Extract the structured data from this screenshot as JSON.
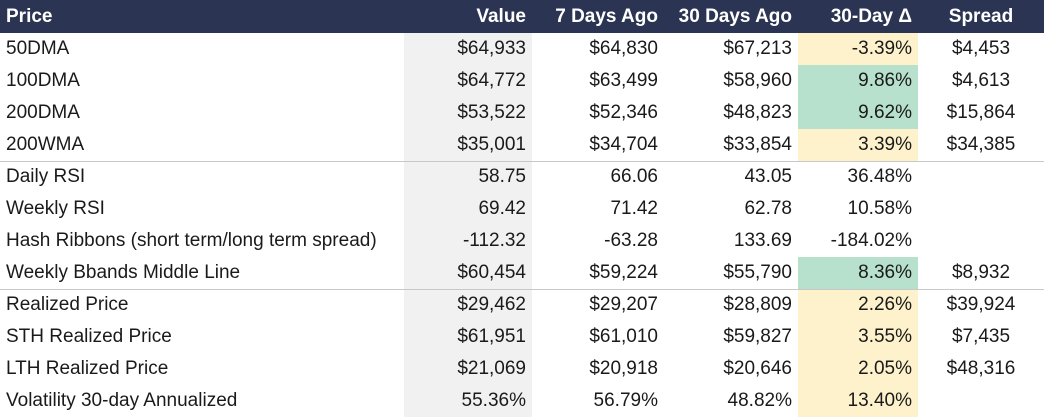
{
  "header": {
    "price": "Price",
    "value": "Value",
    "seven_days_ago": "7 Days Ago",
    "thirty_days_ago": "30 Days Ago",
    "delta_30d": "30-Day Δ",
    "spread": "Spread"
  },
  "colors": {
    "header_bg": "#2b3553",
    "header_text": "#ffffff",
    "value_col_bg": "#f1f1f1",
    "highlight_green": "#b7e1cd",
    "highlight_yellow": "#fdf2cc"
  },
  "rows": [
    {
      "label": "50DMA",
      "value": "$64,933",
      "d7": "$64,830",
      "d30": "$67,213",
      "delta": "-3.39%",
      "spread": "$4,453",
      "delta_highlight": "yellow"
    },
    {
      "label": "100DMA",
      "value": "$64,772",
      "d7": "$63,499",
      "d30": "$58,960",
      "delta": "9.86%",
      "spread": "$4,613",
      "delta_highlight": "green"
    },
    {
      "label": "200DMA",
      "value": "$53,522",
      "d7": "$52,346",
      "d30": "$48,823",
      "delta": "9.62%",
      "spread": "$15,864",
      "delta_highlight": "green"
    },
    {
      "label": "200WMA",
      "value": "$35,001",
      "d7": "$34,704",
      "d30": "$33,854",
      "delta": "3.39%",
      "spread": "$34,385",
      "delta_highlight": "yellow"
    },
    {
      "label": "Daily RSI",
      "value": "58.75",
      "d7": "66.06",
      "d30": "43.05",
      "delta": "36.48%",
      "spread": "",
      "delta_highlight": "none"
    },
    {
      "label": "Weekly RSI",
      "value": "69.42",
      "d7": "71.42",
      "d30": "62.78",
      "delta": "10.58%",
      "spread": "",
      "delta_highlight": "none"
    },
    {
      "label": "Hash Ribbons (short term/long term spread)",
      "value": "-112.32",
      "d7": "-63.28",
      "d30": "133.69",
      "delta": "-184.02%",
      "spread": "",
      "delta_highlight": "none"
    },
    {
      "label": "Weekly Bbands Middle Line",
      "value": "$60,454",
      "d7": "$59,224",
      "d30": "$55,790",
      "delta": "8.36%",
      "spread": "$8,932",
      "delta_highlight": "green"
    },
    {
      "label": "Realized Price",
      "value": "$29,462",
      "d7": "$29,207",
      "d30": "$28,809",
      "delta": "2.26%",
      "spread": "$39,924",
      "delta_highlight": "yellow"
    },
    {
      "label": "STH Realized Price",
      "value": "$61,951",
      "d7": "$61,010",
      "d30": "$59,827",
      "delta": "3.55%",
      "spread": "$7,435",
      "delta_highlight": "yellow"
    },
    {
      "label": "LTH Realized Price",
      "value": "$21,069",
      "d7": "$20,918",
      "d30": "$20,646",
      "delta": "2.05%",
      "spread": "$48,316",
      "delta_highlight": "yellow"
    },
    {
      "label": "Volatility 30-day Annualized",
      "value": "55.36%",
      "d7": "56.79%",
      "d30": "48.82%",
      "delta": "13.40%",
      "spread": "",
      "delta_highlight": "yellow"
    }
  ]
}
